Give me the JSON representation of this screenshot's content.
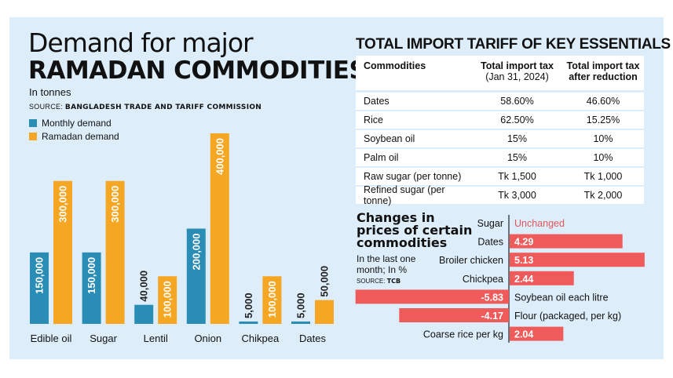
{
  "left": {
    "title_line1": "Demand for major",
    "title_line2": "RAMADAN COMMODITIES",
    "unit": "In tonnes",
    "source_label": "SOURCE:",
    "source": "BANGLADESH TRADE AND TARIFF COMMISSION"
  },
  "colors": {
    "background": "#ddeefa",
    "monthly": "#2a8db5",
    "ramadan": "#f5a623",
    "change_bar": "#ef5b5b",
    "unchanged_text": "#e0565b"
  },
  "chart_data": [
    {
      "type": "bar",
      "categories": [
        "Edible oil",
        "Sugar",
        "Lentil",
        "Onion",
        "Chikpea",
        "Dates"
      ],
      "series": [
        {
          "name": "Monthly demand",
          "values": [
            150000,
            150000,
            40000,
            200000,
            5000,
            5000
          ]
        },
        {
          "name": "Ramadan demand",
          "values": [
            300000,
            300000,
            100000,
            400000,
            100000,
            50000
          ]
        }
      ],
      "ylim": [
        0,
        400000
      ],
      "legend": "top-left",
      "data_labels": true,
      "grid": false
    },
    {
      "type": "bar",
      "orientation": "horizontal",
      "title": "Changes in prices of certain commodities",
      "subtitle": "In the last one month; In %",
      "source_label": "SOURCE:",
      "source": "TCB",
      "categories": [
        "Sugar",
        "Dates",
        "Broiler chicken",
        "Chickpea",
        "Soybean oil each litre",
        "Flour (packaged, per kg)",
        "Coarse rice per kg"
      ],
      "values": [
        0,
        4.29,
        5.13,
        2.44,
        -5.83,
        -4.17,
        2.04
      ],
      "labels": [
        "Unchanged",
        "4.29",
        "5.13",
        "2.44",
        "-5.83",
        "-4.17",
        "2.04"
      ]
    }
  ],
  "tariff": {
    "title": "TOTAL IMPORT TARIFF OF KEY ESSENTIALS",
    "headers": [
      "Commodities",
      "Total import tax",
      "(Jan 31, 2024)",
      "Total import tax after reduction"
    ],
    "rows": [
      [
        "Dates",
        "58.60%",
        "46.60%"
      ],
      [
        "Rice",
        "62.50%",
        "15.25%"
      ],
      [
        "Soybean oil",
        "15%",
        "10%"
      ],
      [
        "Palm oil",
        "15%",
        "10%"
      ],
      [
        "Raw sugar (per tonne)",
        "Tk 1,500",
        "Tk 1,000"
      ],
      [
        "Refined sugar (per tonne)",
        "Tk 3,000",
        "Tk 2,000"
      ]
    ]
  }
}
